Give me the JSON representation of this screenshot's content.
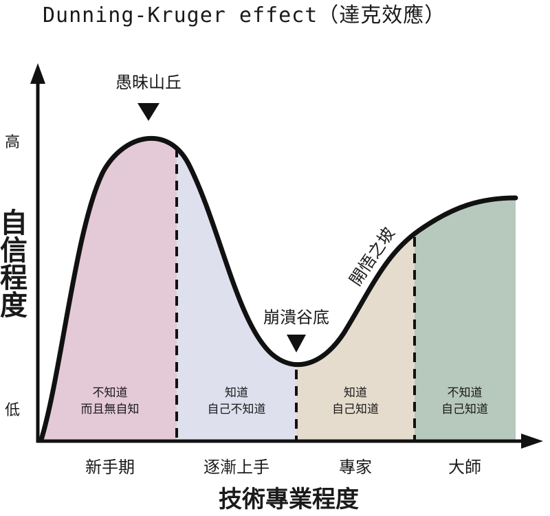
{
  "title": "Dunning-Kruger effect（達克效應）",
  "y_axis": {
    "title_chars": [
      "自",
      "信",
      "程",
      "度"
    ],
    "high_label": "高",
    "low_label": "低"
  },
  "x_axis": {
    "title": "技術專業程度"
  },
  "annotations": {
    "peak": "愚昧山丘",
    "valley": "崩潰谷底",
    "slope": "開悟之坡"
  },
  "stages": [
    "新手期",
    "逐漸上手",
    "專家",
    "大師"
  ],
  "zones": [
    {
      "line1": "不知道",
      "line2": "而且無自知",
      "color": "#e4c9d6"
    },
    {
      "line1": "知道",
      "line2": "自己不知道",
      "color": "#dfe0ee"
    },
    {
      "line1": "知道",
      "line2": "自己知道",
      "color": "#e6dccd"
    },
    {
      "line1": "不知道",
      "line2": "自己知道",
      "color": "#b7c8bd"
    }
  ],
  "colors": {
    "curve": "#111111",
    "axis": "#111111"
  }
}
